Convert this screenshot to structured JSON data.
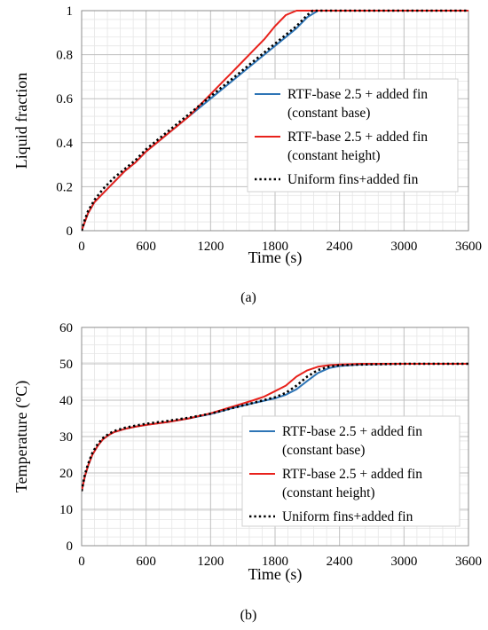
{
  "chart_data": [
    {
      "type": "line",
      "caption": "(a)",
      "xlabel": "Time (s)",
      "ylabel": "Liquid fraction",
      "xlim": [
        0,
        3600
      ],
      "ylim": [
        0,
        1
      ],
      "xticks": [
        0,
        600,
        1200,
        1800,
        2400,
        3000,
        3600
      ],
      "yticks": [
        0,
        0.2,
        0.4,
        0.6,
        0.8,
        1
      ],
      "ytick_labels": [
        "0",
        "0.2",
        "0.4",
        "0.6",
        "0.8",
        "1"
      ],
      "grid": true,
      "legend": {
        "position": "right",
        "entries": [
          {
            "series": 0,
            "lines": [
              "RTF-base 2.5 + added fin",
              "(constant base)"
            ]
          },
          {
            "series": 1,
            "lines": [
              "RTF-base 2.5 + added fin",
              "(constant height)"
            ]
          },
          {
            "series": 2,
            "lines": [
              "Uniform fins+added fin"
            ]
          }
        ]
      },
      "series": [
        {
          "name": "RTF-base 2.5 + added fin (constant base)",
          "color": "#2e75b6",
          "style": "solid",
          "x": [
            0,
            30,
            60,
            120,
            200,
            300,
            400,
            500,
            600,
            700,
            800,
            900,
            1000,
            1100,
            1200,
            1300,
            1400,
            1500,
            1600,
            1700,
            1800,
            1900,
            2000,
            2100,
            2200,
            2400,
            3000,
            3600
          ],
          "y": [
            0,
            0.04,
            0.08,
            0.13,
            0.17,
            0.22,
            0.27,
            0.31,
            0.36,
            0.4,
            0.44,
            0.48,
            0.52,
            0.56,
            0.6,
            0.64,
            0.68,
            0.72,
            0.76,
            0.8,
            0.84,
            0.88,
            0.92,
            0.97,
            1.0,
            1.0,
            1.0,
            1.0
          ]
        },
        {
          "name": "RTF-base 2.5 + added fin (constant height)",
          "color": "#e8221c",
          "style": "solid",
          "x": [
            0,
            30,
            60,
            120,
            200,
            300,
            400,
            500,
            600,
            700,
            800,
            900,
            1000,
            1100,
            1200,
            1300,
            1400,
            1500,
            1600,
            1700,
            1800,
            1900,
            2000,
            2100,
            2400,
            3000,
            3600
          ],
          "y": [
            0,
            0.04,
            0.08,
            0.13,
            0.17,
            0.22,
            0.27,
            0.31,
            0.36,
            0.4,
            0.44,
            0.48,
            0.52,
            0.57,
            0.62,
            0.67,
            0.72,
            0.77,
            0.82,
            0.87,
            0.93,
            0.98,
            1.0,
            1.0,
            1.0,
            1.0,
            1.0
          ]
        },
        {
          "name": "Uniform fins+added fin",
          "color": "#000000",
          "style": "dotted",
          "x": [
            0,
            30,
            60,
            120,
            200,
            300,
            400,
            500,
            600,
            700,
            800,
            900,
            1000,
            1100,
            1200,
            1300,
            1400,
            1500,
            1600,
            1700,
            1800,
            1900,
            2000,
            2100,
            2150,
            2400,
            3000,
            3600
          ],
          "y": [
            0,
            0.05,
            0.09,
            0.14,
            0.19,
            0.24,
            0.28,
            0.32,
            0.37,
            0.41,
            0.45,
            0.49,
            0.53,
            0.57,
            0.61,
            0.65,
            0.69,
            0.73,
            0.77,
            0.81,
            0.85,
            0.89,
            0.93,
            0.98,
            1.0,
            1.0,
            1.0,
            1.0
          ]
        }
      ]
    },
    {
      "type": "line",
      "caption": "(b)",
      "xlabel": "Time (s)",
      "ylabel": "Temperature (°C)",
      "xlim": [
        0,
        3600
      ],
      "ylim": [
        0,
        60
      ],
      "xticks": [
        0,
        600,
        1200,
        1800,
        2400,
        3000,
        3600
      ],
      "yticks": [
        0,
        10,
        20,
        30,
        40,
        50,
        60
      ],
      "ytick_labels": [
        "0",
        "10",
        "20",
        "30",
        "40",
        "50",
        "60"
      ],
      "grid": true,
      "legend": {
        "position": "right",
        "entries": [
          {
            "series": 0,
            "lines": [
              "RTF-base 2.5 + added fin",
              "(constant base)"
            ]
          },
          {
            "series": 1,
            "lines": [
              "RTF-base 2.5 + added fin",
              "(constant height)"
            ]
          },
          {
            "series": 2,
            "lines": [
              "Uniform fins+added fin"
            ]
          }
        ]
      },
      "series": [
        {
          "name": "RTF-base 2.5 + added fin (constant base)",
          "color": "#2e75b6",
          "style": "solid",
          "x": [
            0,
            30,
            60,
            100,
            150,
            200,
            250,
            300,
            400,
            500,
            600,
            800,
            1000,
            1200,
            1400,
            1600,
            1800,
            1900,
            2000,
            2100,
            2200,
            2300,
            2400,
            2600,
            3000,
            3600
          ],
          "y": [
            15,
            19,
            22,
            25,
            27.5,
            29.3,
            30.4,
            31.2,
            32.1,
            32.7,
            33.2,
            34,
            35,
            36.2,
            37.8,
            39.2,
            40.5,
            41.5,
            43,
            45.3,
            47.5,
            48.8,
            49.4,
            49.8,
            50,
            50
          ]
        },
        {
          "name": "RTF-base 2.5 + added fin (constant height)",
          "color": "#e8221c",
          "style": "solid",
          "x": [
            0,
            30,
            60,
            100,
            150,
            200,
            250,
            300,
            400,
            500,
            600,
            800,
            1000,
            1200,
            1400,
            1600,
            1700,
            1800,
            1900,
            2000,
            2100,
            2200,
            2300,
            2400,
            2600,
            3000,
            3600
          ],
          "y": [
            15,
            19,
            22,
            25,
            27.5,
            29.3,
            30.4,
            31.2,
            32.1,
            32.7,
            33.2,
            34,
            35,
            36.4,
            38.2,
            40,
            41,
            42.5,
            44,
            46.5,
            48.2,
            49.2,
            49.6,
            49.8,
            50,
            50,
            50
          ]
        },
        {
          "name": "Uniform fins+added fin",
          "color": "#000000",
          "style": "dotted",
          "x": [
            0,
            30,
            60,
            100,
            150,
            200,
            250,
            300,
            400,
            500,
            600,
            800,
            1000,
            1200,
            1400,
            1600,
            1800,
            1900,
            2000,
            2100,
            2200,
            2300,
            2400,
            2600,
            3000,
            3600
          ],
          "y": [
            15,
            19.5,
            22.5,
            25.5,
            28,
            29.6,
            30.7,
            31.5,
            32.4,
            33,
            33.5,
            34.3,
            35.2,
            36.3,
            37.8,
            39.3,
            40.8,
            42,
            44,
            46.5,
            48.3,
            49.2,
            49.6,
            49.8,
            50,
            50
          ]
        }
      ]
    }
  ]
}
